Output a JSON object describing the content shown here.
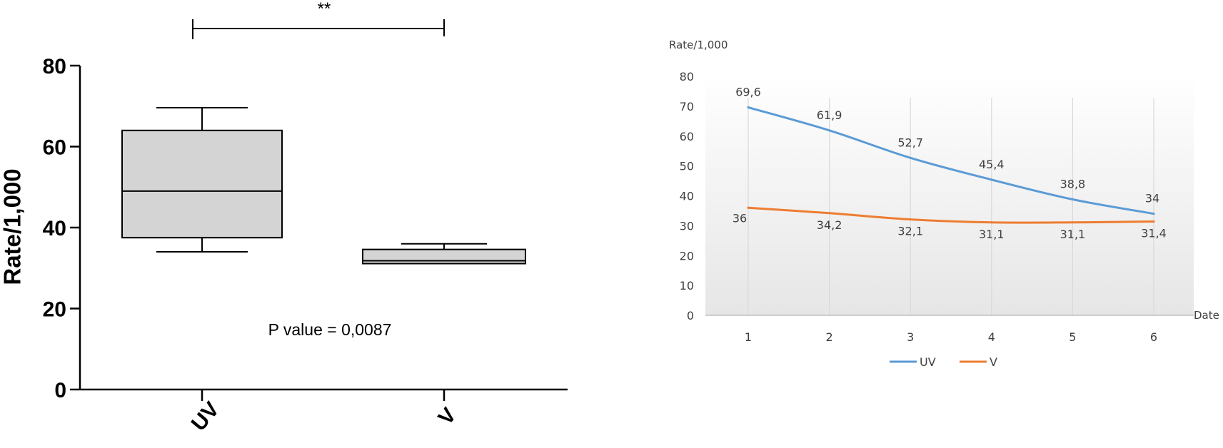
{
  "chart_data": [
    {
      "type": "box",
      "ylabel": "Rate/1,000",
      "ylim": [
        0,
        80
      ],
      "yticks": [
        "0",
        "20",
        "40",
        "60",
        "80"
      ],
      "categories": [
        "UV",
        "V"
      ],
      "boxes": [
        {
          "name": "UV",
          "min": 34.0,
          "q1": 37.5,
          "median": 49.0,
          "q3": 64.0,
          "max": 69.6
        },
        {
          "name": "V",
          "min": 31.1,
          "q1": 31.1,
          "median": 31.8,
          "q3": 34.6,
          "max": 36.0
        }
      ],
      "significance": "**",
      "annotation": "P value = 0,0087",
      "colors": {
        "box_fill": "#d4d4d4",
        "stroke": "#000000"
      }
    },
    {
      "type": "line",
      "ylabel": "Rate/1,000",
      "xlabel": "Date",
      "x": [
        1,
        2,
        3,
        4,
        5,
        6
      ],
      "xticks": [
        "1",
        "2",
        "3",
        "4",
        "5",
        "6"
      ],
      "yticks": [
        "0",
        "10",
        "20",
        "30",
        "40",
        "50",
        "60",
        "70",
        "80"
      ],
      "ylim": [
        0,
        80
      ],
      "grid": "vertical",
      "legend": "bottom",
      "series": [
        {
          "name": "UV",
          "color": "#5b9bd5",
          "values": [
            69.6,
            61.9,
            52.7,
            45.4,
            38.8,
            34
          ],
          "labels": [
            "69,6",
            "61,9",
            "52,7",
            "45,4",
            "38,8",
            "34"
          ]
        },
        {
          "name": "V",
          "color": "#ed7d31",
          "values": [
            36,
            34.2,
            32.1,
            31.1,
            31.1,
            31.4
          ],
          "labels": [
            "36",
            "34,2",
            "32,1",
            "31,1",
            "31,1",
            "31,4"
          ]
        }
      ]
    }
  ]
}
